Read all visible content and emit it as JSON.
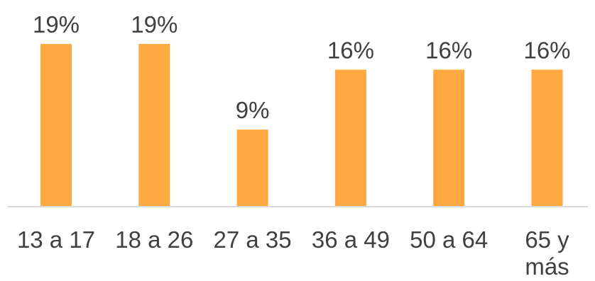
{
  "chart_data": {
    "type": "bar",
    "categories": [
      "13 a 17",
      "18 a 26",
      "27 a 35",
      "36 a 49",
      "50 a 64",
      "65 y más"
    ],
    "category_lines": [
      [
        "13 a 17"
      ],
      [
        "18 a 26"
      ],
      [
        "27 a 35"
      ],
      [
        "36 a 49"
      ],
      [
        "50 a 64"
      ],
      [
        "65 y",
        "más"
      ]
    ],
    "values": [
      19,
      19,
      9,
      16,
      16,
      16
    ],
    "data_labels": [
      "19%",
      "19%",
      "9%",
      "16%",
      "16%",
      "16%"
    ],
    "unit": "%",
    "ylim": [
      0,
      24
    ],
    "grid": false,
    "legend": "none",
    "colors": {
      "bar": "#FFA940",
      "axis": "#D9D9D9",
      "text": "#404040"
    }
  }
}
